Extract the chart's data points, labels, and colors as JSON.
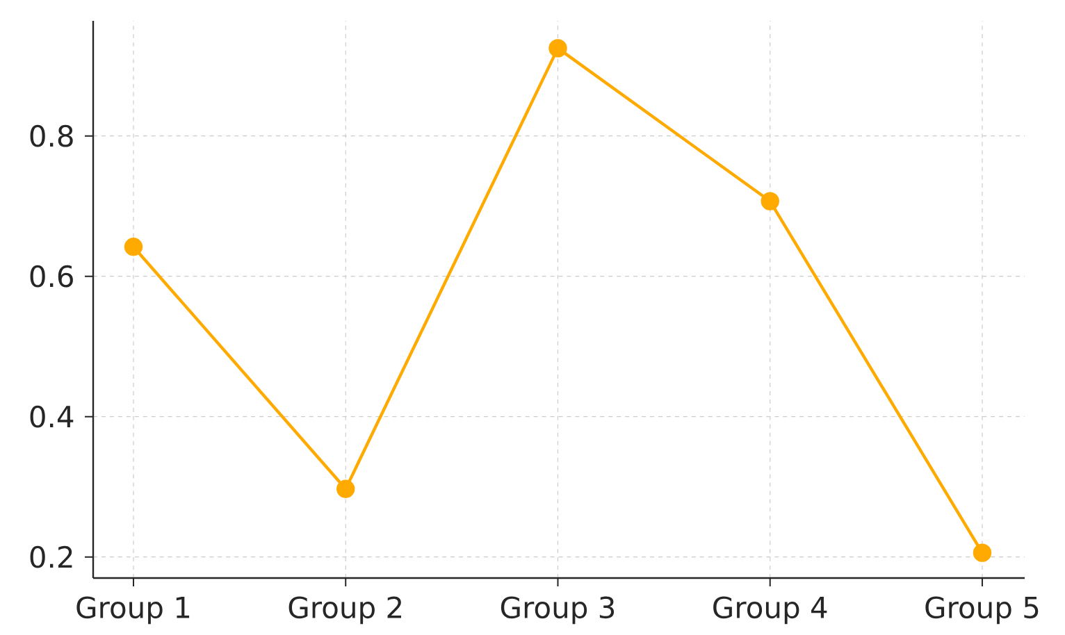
{
  "chart_data": {
    "type": "line",
    "categories": [
      "Group 1",
      "Group 2",
      "Group 3",
      "Group 4",
      "Group 5"
    ],
    "values": [
      0.642,
      0.297,
      0.925,
      0.707,
      0.206
    ],
    "color": "#ffaa00",
    "ylim": [
      0.17,
      0.964
    ],
    "yticks": [
      0.2,
      0.4,
      0.6,
      0.8
    ],
    "grid": true,
    "marker": "circle",
    "line_style": "solid"
  }
}
